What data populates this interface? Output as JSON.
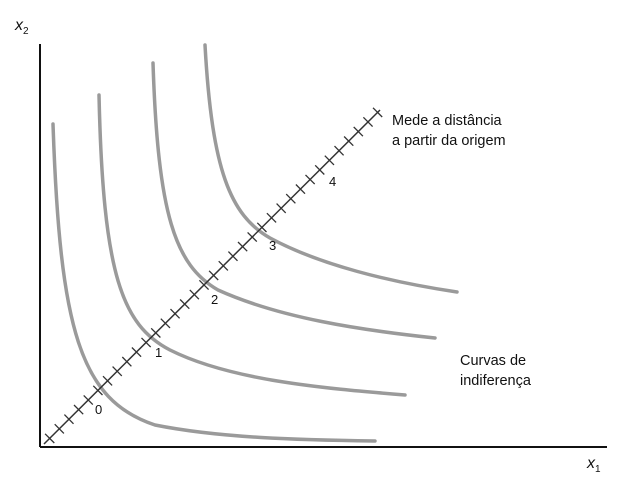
{
  "axes": {
    "x_label": "x",
    "x_subscript": "1",
    "y_label": "x",
    "y_subscript": "2"
  },
  "ray": {
    "annotation_line1": "Mede a distância",
    "annotation_line2": "a partir da origem",
    "level_labels": [
      "0",
      "1",
      "2",
      "3",
      "4"
    ]
  },
  "curves": {
    "annotation_line1": "Curvas de",
    "annotation_line2": "indiferença",
    "count": 4
  },
  "colors": {
    "curve": "#9a9a9a",
    "ray": "#333333",
    "axis": "#111111",
    "text": "#111111"
  }
}
